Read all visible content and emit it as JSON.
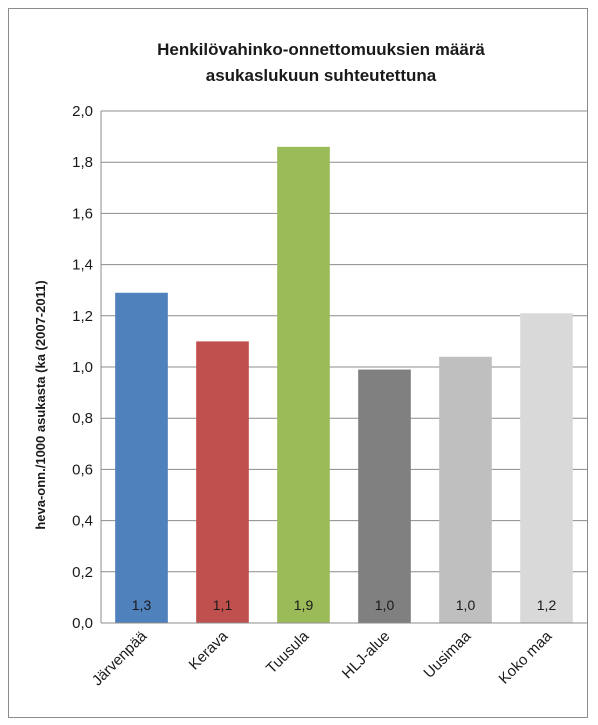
{
  "chart_data": {
    "type": "bar",
    "title_lines": [
      "Henkilövahinko-onnettomuuksien määrä",
      "asukaslukuun suhteutettuna"
    ],
    "ylabel": "heva-onn./1000 asukasta (ka (2007-2011)",
    "xlabel": "",
    "categories": [
      "Järvenpää",
      "Kerava",
      "Tuusula",
      "HLJ-alue",
      "Uusimaa",
      "Koko maa"
    ],
    "values": [
      1.29,
      1.1,
      1.86,
      0.99,
      1.04,
      1.21
    ],
    "data_labels": [
      "1,3",
      "1,1",
      "1,9",
      "1,0",
      "1,0",
      "1,2"
    ],
    "colors": [
      "#4f81bd",
      "#c0504d",
      "#9bbb59",
      "#808080",
      "#bfbfbf",
      "#d9d9d9"
    ],
    "ylim": [
      0,
      2.0
    ],
    "y_ticks": [
      0,
      0.2,
      0.4,
      0.6,
      0.8,
      1.0,
      1.2,
      1.4,
      1.6,
      1.8,
      2.0
    ],
    "y_tick_labels": [
      "0,0",
      "0,2",
      "0,4",
      "0,6",
      "0,8",
      "1,0",
      "1,2",
      "1,4",
      "1,6",
      "1,8",
      "2,0"
    ],
    "grid": true,
    "legend": "none"
  }
}
